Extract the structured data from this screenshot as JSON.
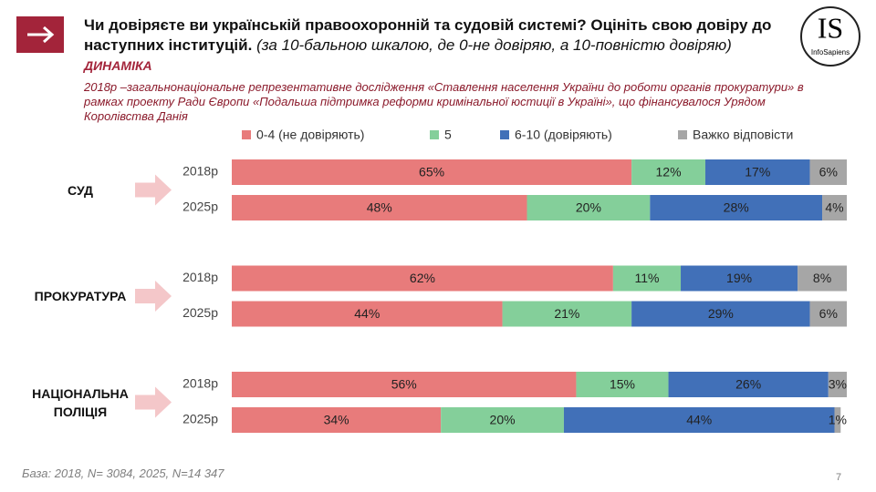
{
  "logo": {
    "mark": "IS",
    "name": "InfoSapiens"
  },
  "page_number": "7",
  "chart_data": {
    "type": "bar",
    "orientation": "horizontal",
    "stacked": true,
    "title": "Чи довіряєте ви українській правоохоронній та судовій системі? Оцініть свою довіру до наступних інституцій.",
    "title_note": "(за 10-бальною шкалою, де 0-не довіряю, а 10-повністю довіряю)",
    "tag": "ДИНАМІКА",
    "subtitle": "2018р –загальнонаціональне репрезентативне дослідження «Ставлення населення України до роботи органів прокуратури» в рамках проекту Ради Європи «Подальша підтримка реформи кримінальної юстиції в Україні», що фінансувалося Урядом Королівства Данія",
    "footnote": "База: 2018, N= 3084, 2025, N=14 347",
    "groups": [
      "СУД",
      "ПРОКУРАТУРА",
      "НАЦІОНАЛЬНА ПОЛІЦІЯ"
    ],
    "categories": [
      "2018р",
      "2025р",
      "2018р",
      "2025р",
      "2018р",
      "2025р"
    ],
    "xlim": [
      0,
      100
    ],
    "series": [
      {
        "name": "0-4 (не довіряють)",
        "color": "#e87b7b",
        "values": [
          65,
          48,
          62,
          44,
          56,
          34
        ],
        "value_labels": [
          "65%",
          "48%",
          "62%",
          "44%",
          "56%",
          "34%"
        ]
      },
      {
        "name": "5",
        "color": "#84cf9a",
        "values": [
          12,
          20,
          11,
          21,
          15,
          20
        ],
        "value_labels": [
          "12%",
          "20%",
          "11%",
          "21%",
          "15%",
          "20%"
        ]
      },
      {
        "name": "6-10 (довіряють)",
        "color": "#4170b8",
        "values": [
          17,
          28,
          19,
          29,
          26,
          44
        ],
        "value_labels": [
          "17%",
          "28%",
          "19%",
          "29%",
          "26%",
          "44%"
        ]
      },
      {
        "name": "Важко відповісти",
        "color": "#a6a6a6",
        "values": [
          6,
          4,
          8,
          6,
          3,
          1
        ],
        "value_labels": [
          "6%",
          "4%",
          "8%",
          "6%",
          "3%",
          "1%"
        ]
      }
    ]
  }
}
